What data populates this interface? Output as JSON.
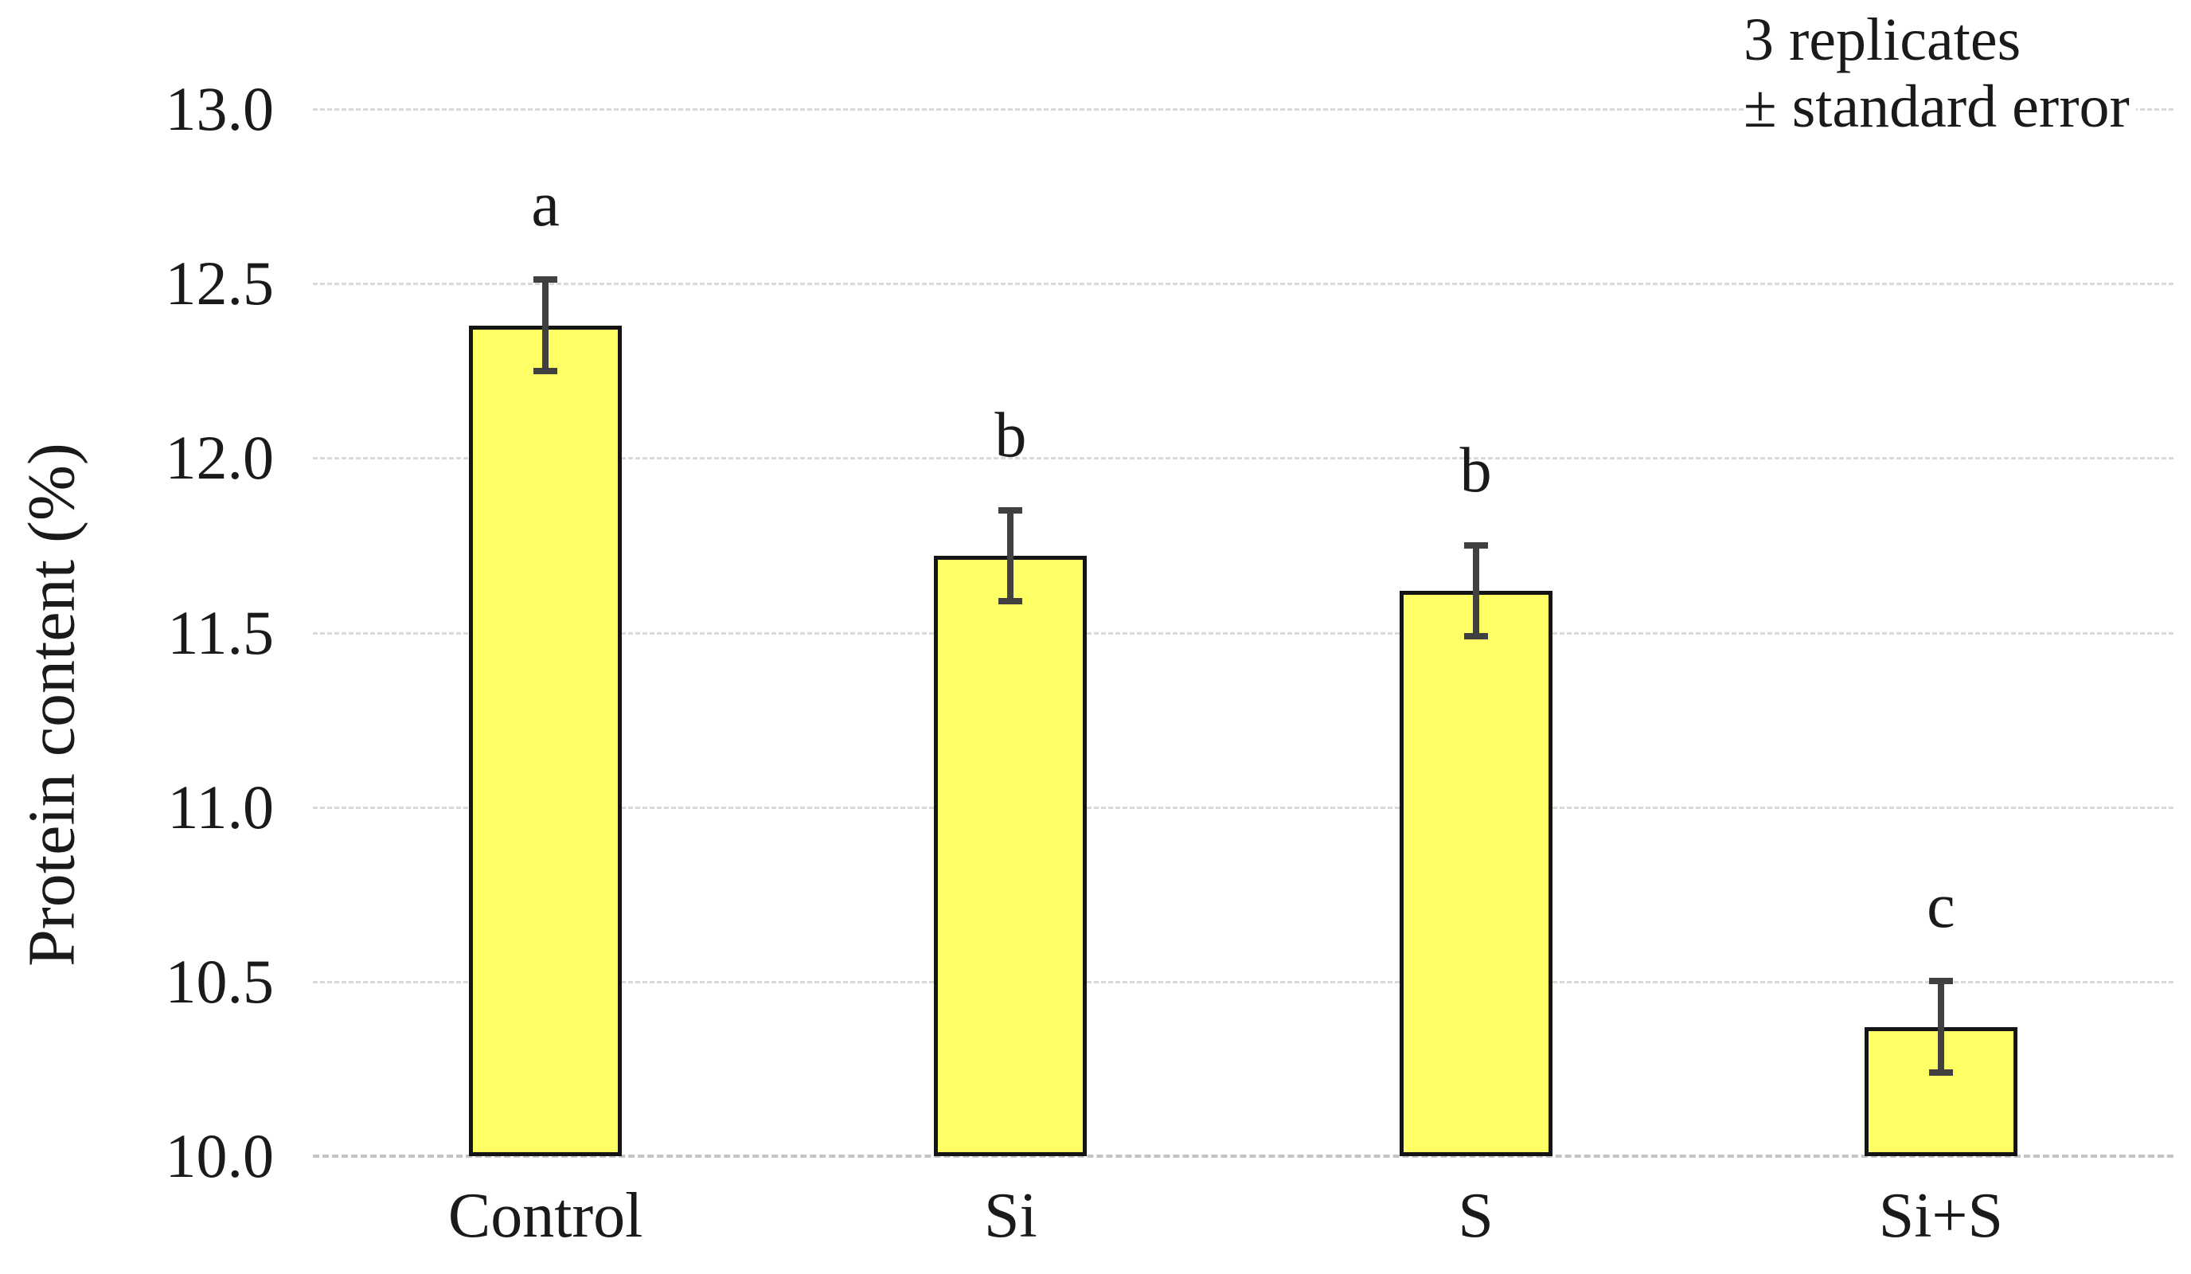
{
  "chart_data": {
    "type": "bar",
    "title": "",
    "xlabel": "",
    "ylabel": "Protein content (%)",
    "categories": [
      "Control",
      "Si",
      "S",
      "Si+S"
    ],
    "values": [
      12.38,
      11.72,
      11.62,
      10.37
    ],
    "standard_errors": [
      0.14,
      0.14,
      0.14,
      0.14
    ],
    "significance_letters": [
      "a",
      "b",
      "b",
      "c"
    ],
    "ytick_labels": [
      "13.0",
      "12.5",
      "12.0",
      "11.5",
      "11.0",
      "10.5",
      "10.0"
    ],
    "ylim": [
      10.0,
      13.0
    ],
    "grid": true,
    "legend_position": "none",
    "annotation_lines": [
      "3 replicates",
      "± standard error"
    ],
    "bar_fill_color": "#FFFF66",
    "bar_border_color": "#141414",
    "error_bar_color": "#404040",
    "gridline_color": "#d9d9d9",
    "axis_line_color": "#c4c4c4",
    "text_color": "#1a1a1a"
  }
}
